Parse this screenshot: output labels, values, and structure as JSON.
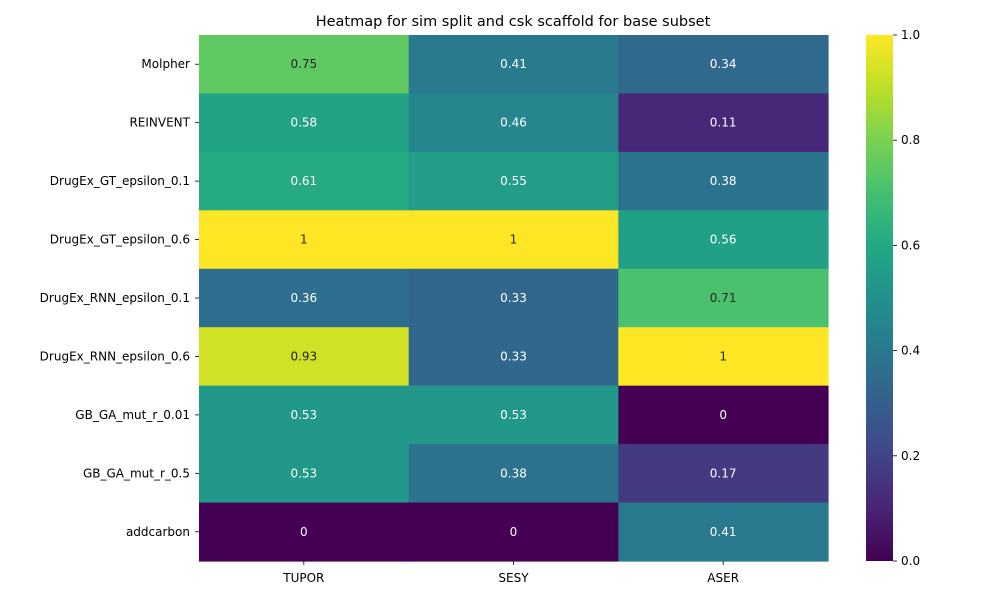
{
  "chart_data": {
    "type": "heatmap",
    "title": "Heatmap for sim split and csk scaffold for base subset",
    "xlabel": "",
    "ylabel": "",
    "columns": [
      "TUPOR",
      "SESY",
      "ASER"
    ],
    "rows": [
      "Molpher",
      "REINVENT",
      "DrugEx_GT_epsilon_0.1",
      "DrugEx_GT_epsilon_0.6",
      "DrugEx_RNN_epsilon_0.1",
      "DrugEx_RNN_epsilon_0.6",
      "GB_GA_mut_r_0.01",
      "GB_GA_mut_r_0.5",
      "addcarbon"
    ],
    "values": [
      [
        0.75,
        0.41,
        0.34
      ],
      [
        0.58,
        0.46,
        0.11
      ],
      [
        0.61,
        0.55,
        0.38
      ],
      [
        1,
        1,
        0.56
      ],
      [
        0.36,
        0.33,
        0.71
      ],
      [
        0.93,
        0.33,
        1
      ],
      [
        0.53,
        0.53,
        0
      ],
      [
        0.53,
        0.38,
        0.17
      ],
      [
        0,
        0,
        0.41
      ]
    ],
    "colormap": "viridis",
    "colorbar": {
      "range": [
        0.0,
        1.0
      ],
      "ticks": [
        "0.0",
        "0.2",
        "0.4",
        "0.6",
        "0.8",
        "1.0"
      ]
    },
    "grid": false,
    "legend": "colorbar-right"
  }
}
